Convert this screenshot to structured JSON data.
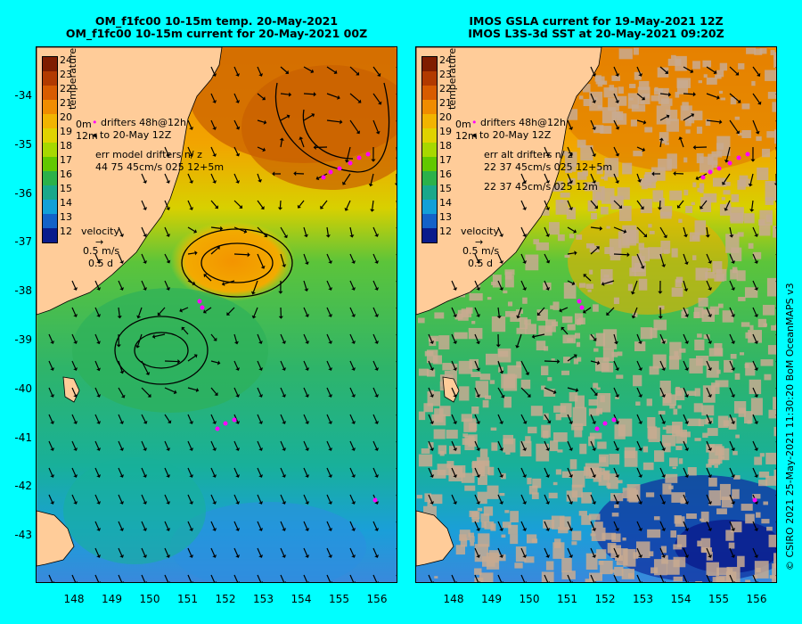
{
  "left": {
    "title_line1": "OM_f1fc00 10-15m temp. 20-May-2021",
    "title_line2": "OM_f1fc00 10-15m current for 20-May-2021 00Z",
    "legend_drifters": "drifters 48h@12h",
    "legend_to": "to 20-May 12Z",
    "legend_err_title": "err model drifters n/ z",
    "legend_err_line": "44 75 45cm/s 025 12+5m",
    "legend_err_line2": "",
    "depth_label_top": "0m",
    "depth_label_bot": "12m"
  },
  "right": {
    "title_line1": "IMOS GSLA current for 19-May-2021 12Z",
    "title_line2": "IMOS L3S-3d SST at 20-May-2021 09:20Z",
    "legend_drifters": "drifters 48h@12h",
    "legend_to": "to 20-May 12Z",
    "legend_err_title": "err alt drifters n/ z",
    "legend_err_line": "22 37 45cm/s 025 12+5m",
    "legend_err_line2": "22 37 45cm/s 025 12m",
    "depth_label_top": "0m",
    "depth_label_bot": "12m"
  },
  "colorbar": {
    "title": "temperature (°C)",
    "labels": [
      "24",
      "23",
      "22",
      "21",
      "20",
      "19",
      "18",
      "17",
      "16",
      "15",
      "14",
      "13",
      "12"
    ],
    "colors": [
      "#7f1d00",
      "#b23a00",
      "#d85c00",
      "#f08c00",
      "#f2b400",
      "#e0d200",
      "#a8d800",
      "#62c800",
      "#2cb14a",
      "#1aa88a",
      "#12a0d8",
      "#1462c8",
      "#0a1c8c"
    ]
  },
  "velocity_legend": {
    "title": "velocity",
    "speed": "0.5 m/s",
    "time": "0.5 d"
  },
  "axes": {
    "y_labels": [
      "-34",
      "-35",
      "-36",
      "-37",
      "-38",
      "-39",
      "-40",
      "-41",
      "-42",
      "-43"
    ],
    "x_labels": [
      "148",
      "149",
      "150",
      "151",
      "152",
      "153",
      "154",
      "155",
      "156"
    ]
  },
  "copyright": "© CSIRO 2021   25-May-2021 11:30:20 BoM OceanMAPS v3",
  "colors": {
    "background": "#00FFFF",
    "land": "#FFCC99",
    "drifter": "#FF00FF",
    "cloud": "#C8AA90"
  }
}
